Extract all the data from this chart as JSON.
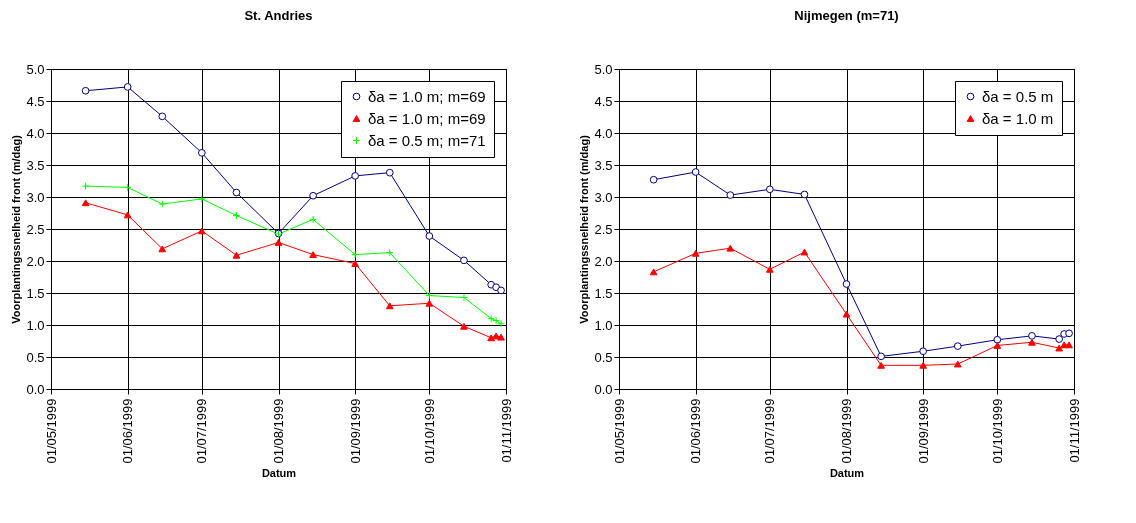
{
  "chart_data": [
    {
      "type": "line",
      "title": "St. Andries",
      "xlabel": "Datum",
      "ylabel": "Voorplantingssnelheid front (m/dag)",
      "x": [
        "1999-05-15",
        "1999-06-01",
        "1999-06-15",
        "1999-07-01",
        "1999-07-15",
        "1999-08-01",
        "1999-08-15",
        "1999-09-01",
        "1999-09-15",
        "1999-10-01",
        "1999-10-15",
        "1999-10-26",
        "1999-10-28",
        "1999-10-30"
      ],
      "series": [
        {
          "name": "δa = 1.0 m; m=69",
          "color": "#000080",
          "marker": "circle",
          "values": [
            4.66,
            4.72,
            4.26,
            3.69,
            3.07,
            2.43,
            3.02,
            3.33,
            3.38,
            2.39,
            2.01,
            1.63,
            1.59,
            1.54
          ]
        },
        {
          "name": "δa = 1.0 m; m=69",
          "color": "#ff0000",
          "marker": "triangle",
          "values": [
            2.91,
            2.72,
            2.19,
            2.47,
            2.09,
            2.29,
            2.1,
            1.96,
            1.3,
            1.34,
            0.98,
            0.8,
            0.83,
            0.81
          ]
        },
        {
          "name": "δa = 0.5 m; m=71",
          "color": "#00ff00",
          "marker": "cross",
          "values": [
            3.17,
            3.15,
            2.89,
            2.97,
            2.71,
            2.42,
            2.65,
            2.1,
            2.13,
            1.46,
            1.43,
            1.1,
            1.07,
            1.02
          ]
        }
      ],
      "xlim": [
        "1999-05-01",
        "1999-11-01"
      ],
      "xticks": [
        {
          "value": "1999-05-01",
          "label": "01/05/1999"
        },
        {
          "value": "1999-06-01",
          "label": "01/06/1999"
        },
        {
          "value": "1999-07-01",
          "label": "01/07/1999"
        },
        {
          "value": "1999-08-01",
          "label": "01/08/1999"
        },
        {
          "value": "1999-09-01",
          "label": "01/09/1999"
        },
        {
          "value": "1999-10-01",
          "label": "01/10/1999"
        },
        {
          "value": "1999-11-01",
          "label": "01/11/1999"
        }
      ],
      "ylim": [
        0,
        5
      ],
      "yticks": [
        {
          "value": 0,
          "label": "0.0"
        },
        0.5,
        {
          "value": 1,
          "label": "1.0"
        },
        1.5,
        {
          "value": 2,
          "label": "2.0"
        },
        2.5,
        {
          "value": 3,
          "label": "3.0"
        },
        3.5,
        {
          "value": 4,
          "label": "4.0"
        },
        4.5,
        {
          "value": 5,
          "label": "5.0"
        }
      ],
      "grid": true,
      "legend": "top right",
      "line_style": "solid"
    },
    {
      "type": "line",
      "title": "Nijmegen (m=71)",
      "xlabel": "Datum",
      "ylabel": "Voorplantingssnelheid front (m/dag)",
      "x": [
        "1999-05-15",
        "1999-06-01",
        "1999-06-15",
        "1999-07-01",
        "1999-07-15",
        "1999-08-01",
        "1999-08-15",
        "1999-09-01",
        "1999-09-15",
        "1999-10-01",
        "1999-10-15",
        "1999-10-26",
        "1999-10-28",
        "1999-10-30"
      ],
      "series": [
        {
          "name": "δa = 0.5 m",
          "color": "#000080",
          "marker": "circle",
          "values": [
            3.27,
            3.39,
            3.03,
            3.12,
            3.04,
            1.64,
            0.51,
            0.59,
            0.67,
            0.77,
            0.83,
            0.78,
            0.86,
            0.87
          ]
        },
        {
          "name": "δa = 1.0 m",
          "color": "#ff0000",
          "marker": "triangle",
          "values": [
            1.83,
            2.12,
            2.2,
            1.87,
            2.14,
            1.17,
            0.37,
            0.37,
            0.39,
            0.68,
            0.73,
            0.64,
            0.69,
            0.69
          ]
        }
      ],
      "xlim": [
        "1999-05-01",
        "1999-11-01"
      ],
      "xticks": [
        {
          "value": "1999-05-01",
          "label": "01/05/1999"
        },
        {
          "value": "1999-06-01",
          "label": "01/06/1999"
        },
        {
          "value": "1999-07-01",
          "label": "01/07/1999"
        },
        {
          "value": "1999-08-01",
          "label": "01/08/1999"
        },
        {
          "value": "1999-09-01",
          "label": "01/09/1999"
        },
        {
          "value": "1999-10-01",
          "label": "01/10/1999"
        },
        {
          "value": "1999-11-01",
          "label": "01/11/1999"
        }
      ],
      "ylim": [
        0,
        5
      ],
      "yticks": [
        {
          "value": 0,
          "label": "0.0"
        },
        0.5,
        {
          "value": 1,
          "label": "1.0"
        },
        1.5,
        {
          "value": 2,
          "label": "2.0"
        },
        2.5,
        {
          "value": 3,
          "label": "3.0"
        },
        3.5,
        {
          "value": 4,
          "label": "4.0"
        },
        4.5,
        {
          "value": 5,
          "label": "5.0"
        }
      ],
      "grid": true,
      "legend": "top right",
      "line_style": "solid"
    }
  ]
}
